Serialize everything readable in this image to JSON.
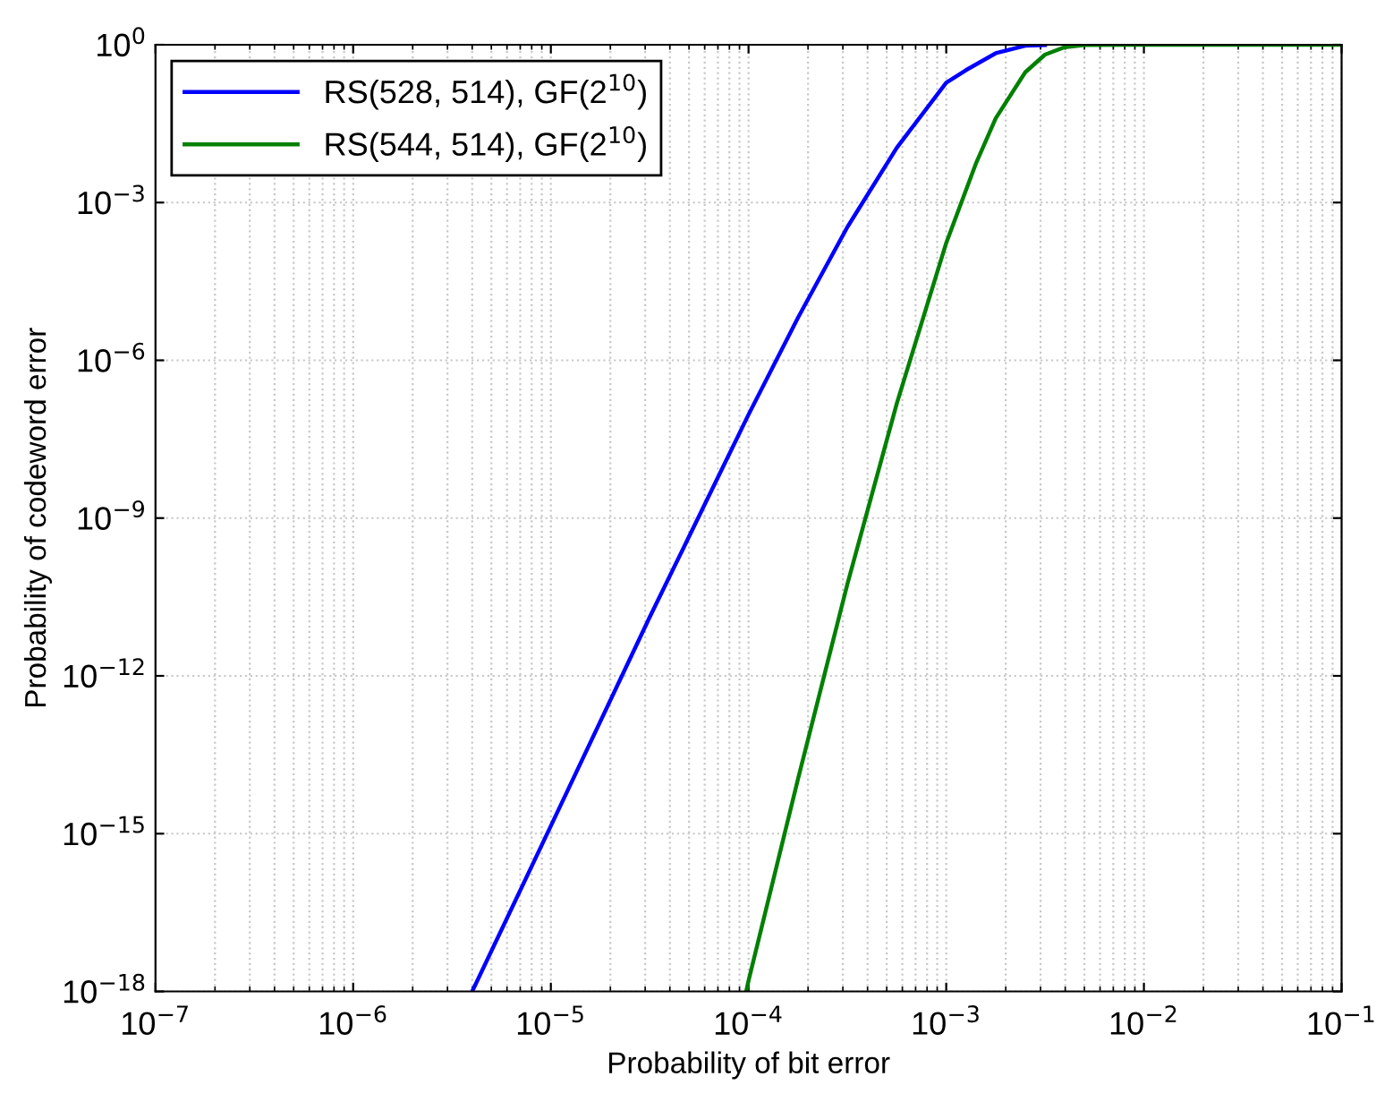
{
  "chart_data": {
    "type": "line",
    "xlabel": "Probability of bit error",
    "ylabel": "Probability of codeword error",
    "log": "xy",
    "grid": true,
    "legend": "top left",
    "line_style": "solid",
    "xlim": [
      1e-07,
      0.1
    ],
    "ylim": [
      1e-18,
      1
    ],
    "xticks": [
      {
        "value": 1e-07,
        "label": "10$^{−7}$"
      },
      {
        "value": 1e-06,
        "label": "10$^{−6}$"
      },
      {
        "value": 1e-05,
        "label": "10$^{−5}$"
      },
      {
        "value": 0.0001,
        "label": "10$^{−4}$"
      },
      {
        "value": 0.001,
        "label": "10$^{−3}$"
      },
      {
        "value": 0.01,
        "label": "10$^{−2}$"
      },
      {
        "value": 0.1,
        "label": "10$^{−1}$"
      }
    ],
    "yticks": [
      {
        "value": 1e-18,
        "label": "10$^{−18}$"
      },
      {
        "value": 1e-15,
        "label": "10$^{−15}$"
      },
      {
        "value": 1e-12,
        "label": "10$^{−12}$"
      },
      {
        "value": 1e-09,
        "label": "10$^{−9}$"
      },
      {
        "value": 1e-06,
        "label": "10$^{−6}$"
      },
      {
        "value": 0.001,
        "label": "10$^{−3}$"
      },
      {
        "value": 1,
        "label": "10$^{0}$"
      }
    ],
    "series": [
      {
        "name": "RS(528, 514), GF(2$^{10}$)",
        "color": "#0000ff",
        "x": [
          4e-06,
          1e-05,
          3.16e-05,
          0.0001,
          0.000178,
          0.000316,
          0.000562,
          0.001,
          0.00126,
          0.00178,
          0.00251,
          0.00316
        ],
        "values": [
          1e-18,
          1.4e-15,
          1.3e-11,
          9.3e-08,
          6.5e-06,
          0.00034,
          0.011,
          0.19,
          0.33,
          0.69,
          0.96,
          0.99
        ]
      },
      {
        "name": "RS(544, 514), GF(2$^{10}$)",
        "color": "#008000",
        "x": [
          9.73e-05,
          0.0001,
          0.000178,
          0.000316,
          0.000562,
          0.001,
          0.00141,
          0.00178,
          0.00251,
          0.00316,
          0.00398,
          0.00501,
          0.01,
          0.1
        ],
        "values": [
          1e-18,
          1.6e-18,
          1.1e-14,
          5.5e-11,
          1.5e-07,
          0.00017,
          0.0054,
          0.04,
          0.3,
          0.65,
          0.9,
          0.985,
          1,
          1
        ]
      }
    ]
  }
}
